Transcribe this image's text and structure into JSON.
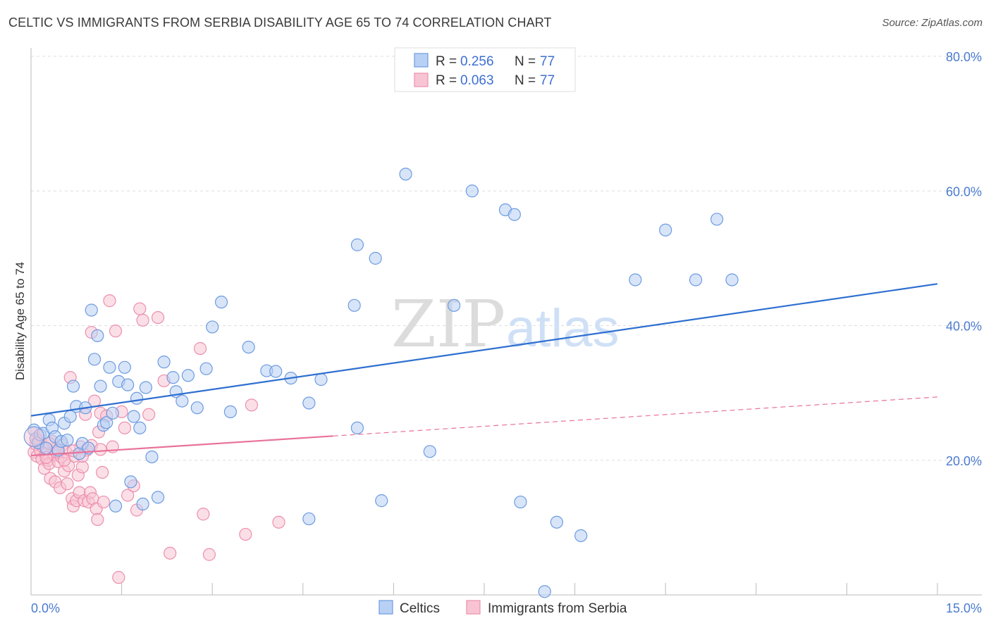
{
  "title": "CELTIC VS IMMIGRANTS FROM SERBIA DISABILITY AGE 65 TO 74 CORRELATION CHART",
  "source": "Source: ZipAtlas.com",
  "watermark": {
    "zip": "ZIP",
    "atlas": "atlas"
  },
  "colors": {
    "blue_fill": "#b8d0f4",
    "blue_stroke": "#6d9be0",
    "blue_line": "#2e6fd0",
    "pink_fill": "#f8c4d4",
    "pink_stroke": "#ec8fae",
    "pink_line": "#e8729a",
    "grid": "#dddddd",
    "axis_label": "#4a7bd0"
  },
  "legend": {
    "rows": [
      {
        "r_label": "R =",
        "r_value": "0.256",
        "n_label": "N =",
        "n_value": "77"
      },
      {
        "r_label": "R =",
        "r_value": "0.063",
        "n_label": "N =",
        "n_value": "77"
      }
    ]
  },
  "chart_data": {
    "type": "scatter",
    "ylabel": "Disability Age 65 to 74",
    "xlim": [
      0,
      15
    ],
    "ylim": [
      0,
      80
    ],
    "x_tick_labels": [
      "0.0%",
      "15.0%"
    ],
    "y_tick_labels": [
      "20.0%",
      "40.0%",
      "60.0%",
      "80.0%"
    ],
    "y_ticks": [
      20,
      40,
      60,
      80
    ],
    "grid": true,
    "series": [
      {
        "name": "Celtics",
        "r": 0.256,
        "n": 77,
        "trend": {
          "x": [
            0,
            15
          ],
          "y": [
            26.6,
            46.2
          ],
          "dashed_from": null
        },
        "points": [
          [
            0.05,
            24.5
          ],
          [
            0.08,
            23.2
          ],
          [
            0.12,
            22.6
          ],
          [
            0.15,
            23.8
          ],
          [
            0.2,
            24.0
          ],
          [
            0.25,
            21.8
          ],
          [
            0.3,
            26.0
          ],
          [
            0.35,
            24.8
          ],
          [
            0.4,
            23.5
          ],
          [
            0.45,
            21.5
          ],
          [
            0.5,
            22.8
          ],
          [
            0.55,
            25.5
          ],
          [
            0.6,
            23.0
          ],
          [
            0.65,
            26.5
          ],
          [
            0.7,
            31.0
          ],
          [
            0.75,
            28.0
          ],
          [
            0.8,
            21.0
          ],
          [
            0.85,
            22.5
          ],
          [
            0.9,
            27.8
          ],
          [
            0.95,
            21.8
          ],
          [
            1.0,
            42.3
          ],
          [
            1.05,
            35.0
          ],
          [
            1.1,
            38.5
          ],
          [
            1.15,
            31.0
          ],
          [
            1.2,
            25.2
          ],
          [
            1.25,
            25.6
          ],
          [
            1.3,
            33.8
          ],
          [
            1.35,
            27.0
          ],
          [
            1.4,
            13.2
          ],
          [
            1.45,
            31.7
          ],
          [
            1.55,
            33.8
          ],
          [
            1.6,
            31.2
          ],
          [
            1.65,
            16.8
          ],
          [
            1.7,
            26.5
          ],
          [
            1.75,
            29.2
          ],
          [
            1.8,
            24.8
          ],
          [
            1.85,
            13.5
          ],
          [
            1.9,
            30.8
          ],
          [
            2.0,
            20.5
          ],
          [
            2.1,
            14.5
          ],
          [
            2.2,
            34.6
          ],
          [
            2.35,
            32.3
          ],
          [
            2.4,
            30.2
          ],
          [
            2.5,
            28.8
          ],
          [
            2.6,
            32.6
          ],
          [
            2.75,
            27.8
          ],
          [
            2.9,
            33.6
          ],
          [
            3.0,
            39.8
          ],
          [
            3.15,
            43.5
          ],
          [
            3.3,
            27.2
          ],
          [
            3.6,
            36.8
          ],
          [
            3.9,
            33.3
          ],
          [
            4.05,
            33.2
          ],
          [
            4.3,
            32.2
          ],
          [
            4.6,
            11.3
          ],
          [
            4.6,
            28.5
          ],
          [
            4.8,
            32.0
          ],
          [
            5.35,
            43.0
          ],
          [
            5.4,
            24.8
          ],
          [
            5.4,
            52.0
          ],
          [
            5.7,
            50.0
          ],
          [
            5.8,
            14.0
          ],
          [
            6.2,
            62.5
          ],
          [
            6.6,
            21.3
          ],
          [
            7.0,
            43.0
          ],
          [
            7.3,
            60.0
          ],
          [
            7.85,
            57.2
          ],
          [
            8.0,
            56.5
          ],
          [
            8.1,
            13.8
          ],
          [
            8.5,
            0.5
          ],
          [
            8.7,
            10.8
          ],
          [
            9.1,
            8.8
          ],
          [
            10.0,
            46.8
          ],
          [
            10.5,
            54.2
          ],
          [
            11.0,
            46.8
          ],
          [
            11.35,
            55.8
          ],
          [
            11.6,
            46.8
          ]
        ]
      },
      {
        "name": "Immigrants from Serbia",
        "r": 0.063,
        "n": 77,
        "trend": {
          "x": [
            0,
            15
          ],
          "y": [
            20.7,
            29.4
          ],
          "dashed_from": 5.0
        },
        "points": [
          [
            0.05,
            21.2
          ],
          [
            0.08,
            22.4
          ],
          [
            0.1,
            20.6
          ],
          [
            0.12,
            23.0
          ],
          [
            0.15,
            21.5
          ],
          [
            0.18,
            20.2
          ],
          [
            0.2,
            22.0
          ],
          [
            0.22,
            18.8
          ],
          [
            0.25,
            21.0
          ],
          [
            0.28,
            20.0
          ],
          [
            0.3,
            19.5
          ],
          [
            0.32,
            17.3
          ],
          [
            0.35,
            22.8
          ],
          [
            0.38,
            20.8
          ],
          [
            0.4,
            16.8
          ],
          [
            0.42,
            21.8
          ],
          [
            0.45,
            19.8
          ],
          [
            0.48,
            15.9
          ],
          [
            0.5,
            20.5
          ],
          [
            0.52,
            22.3
          ],
          [
            0.55,
            18.4
          ],
          [
            0.58,
            21.2
          ],
          [
            0.6,
            16.5
          ],
          [
            0.62,
            19.2
          ],
          [
            0.65,
            32.3
          ],
          [
            0.68,
            14.3
          ],
          [
            0.7,
            13.2
          ],
          [
            0.72,
            20.6
          ],
          [
            0.75,
            14.0
          ],
          [
            0.78,
            17.8
          ],
          [
            0.8,
            15.2
          ],
          [
            0.82,
            22.0
          ],
          [
            0.85,
            19.0
          ],
          [
            0.88,
            14.0
          ],
          [
            0.9,
            26.8
          ],
          [
            0.92,
            21.5
          ],
          [
            0.95,
            13.8
          ],
          [
            0.98,
            15.2
          ],
          [
            1.0,
            39.0
          ],
          [
            1.02,
            14.3
          ],
          [
            1.05,
            28.8
          ],
          [
            1.08,
            12.8
          ],
          [
            1.1,
            11.2
          ],
          [
            1.12,
            24.2
          ],
          [
            1.15,
            27.0
          ],
          [
            1.18,
            18.2
          ],
          [
            1.2,
            13.8
          ],
          [
            1.25,
            26.6
          ],
          [
            1.3,
            43.7
          ],
          [
            1.35,
            22.0
          ],
          [
            1.4,
            39.2
          ],
          [
            1.45,
            2.6
          ],
          [
            1.5,
            27.2
          ],
          [
            1.55,
            24.8
          ],
          [
            1.6,
            14.8
          ],
          [
            1.7,
            16.2
          ],
          [
            1.75,
            12.6
          ],
          [
            1.8,
            42.5
          ],
          [
            1.85,
            40.8
          ],
          [
            1.95,
            26.8
          ],
          [
            2.1,
            41.2
          ],
          [
            2.2,
            31.8
          ],
          [
            2.3,
            6.2
          ],
          [
            2.8,
            36.6
          ],
          [
            2.85,
            12.0
          ],
          [
            2.95,
            6.0
          ],
          [
            3.55,
            9.0
          ],
          [
            3.65,
            28.2
          ],
          [
            4.1,
            10.8
          ],
          [
            0.3,
            22.5
          ],
          [
            0.45,
            21.2
          ],
          [
            0.55,
            20.0
          ],
          [
            0.7,
            21.4
          ],
          [
            0.85,
            20.6
          ],
          [
            1.0,
            22.2
          ],
          [
            1.15,
            21.6
          ],
          [
            0.25,
            20.4
          ]
        ]
      }
    ]
  }
}
